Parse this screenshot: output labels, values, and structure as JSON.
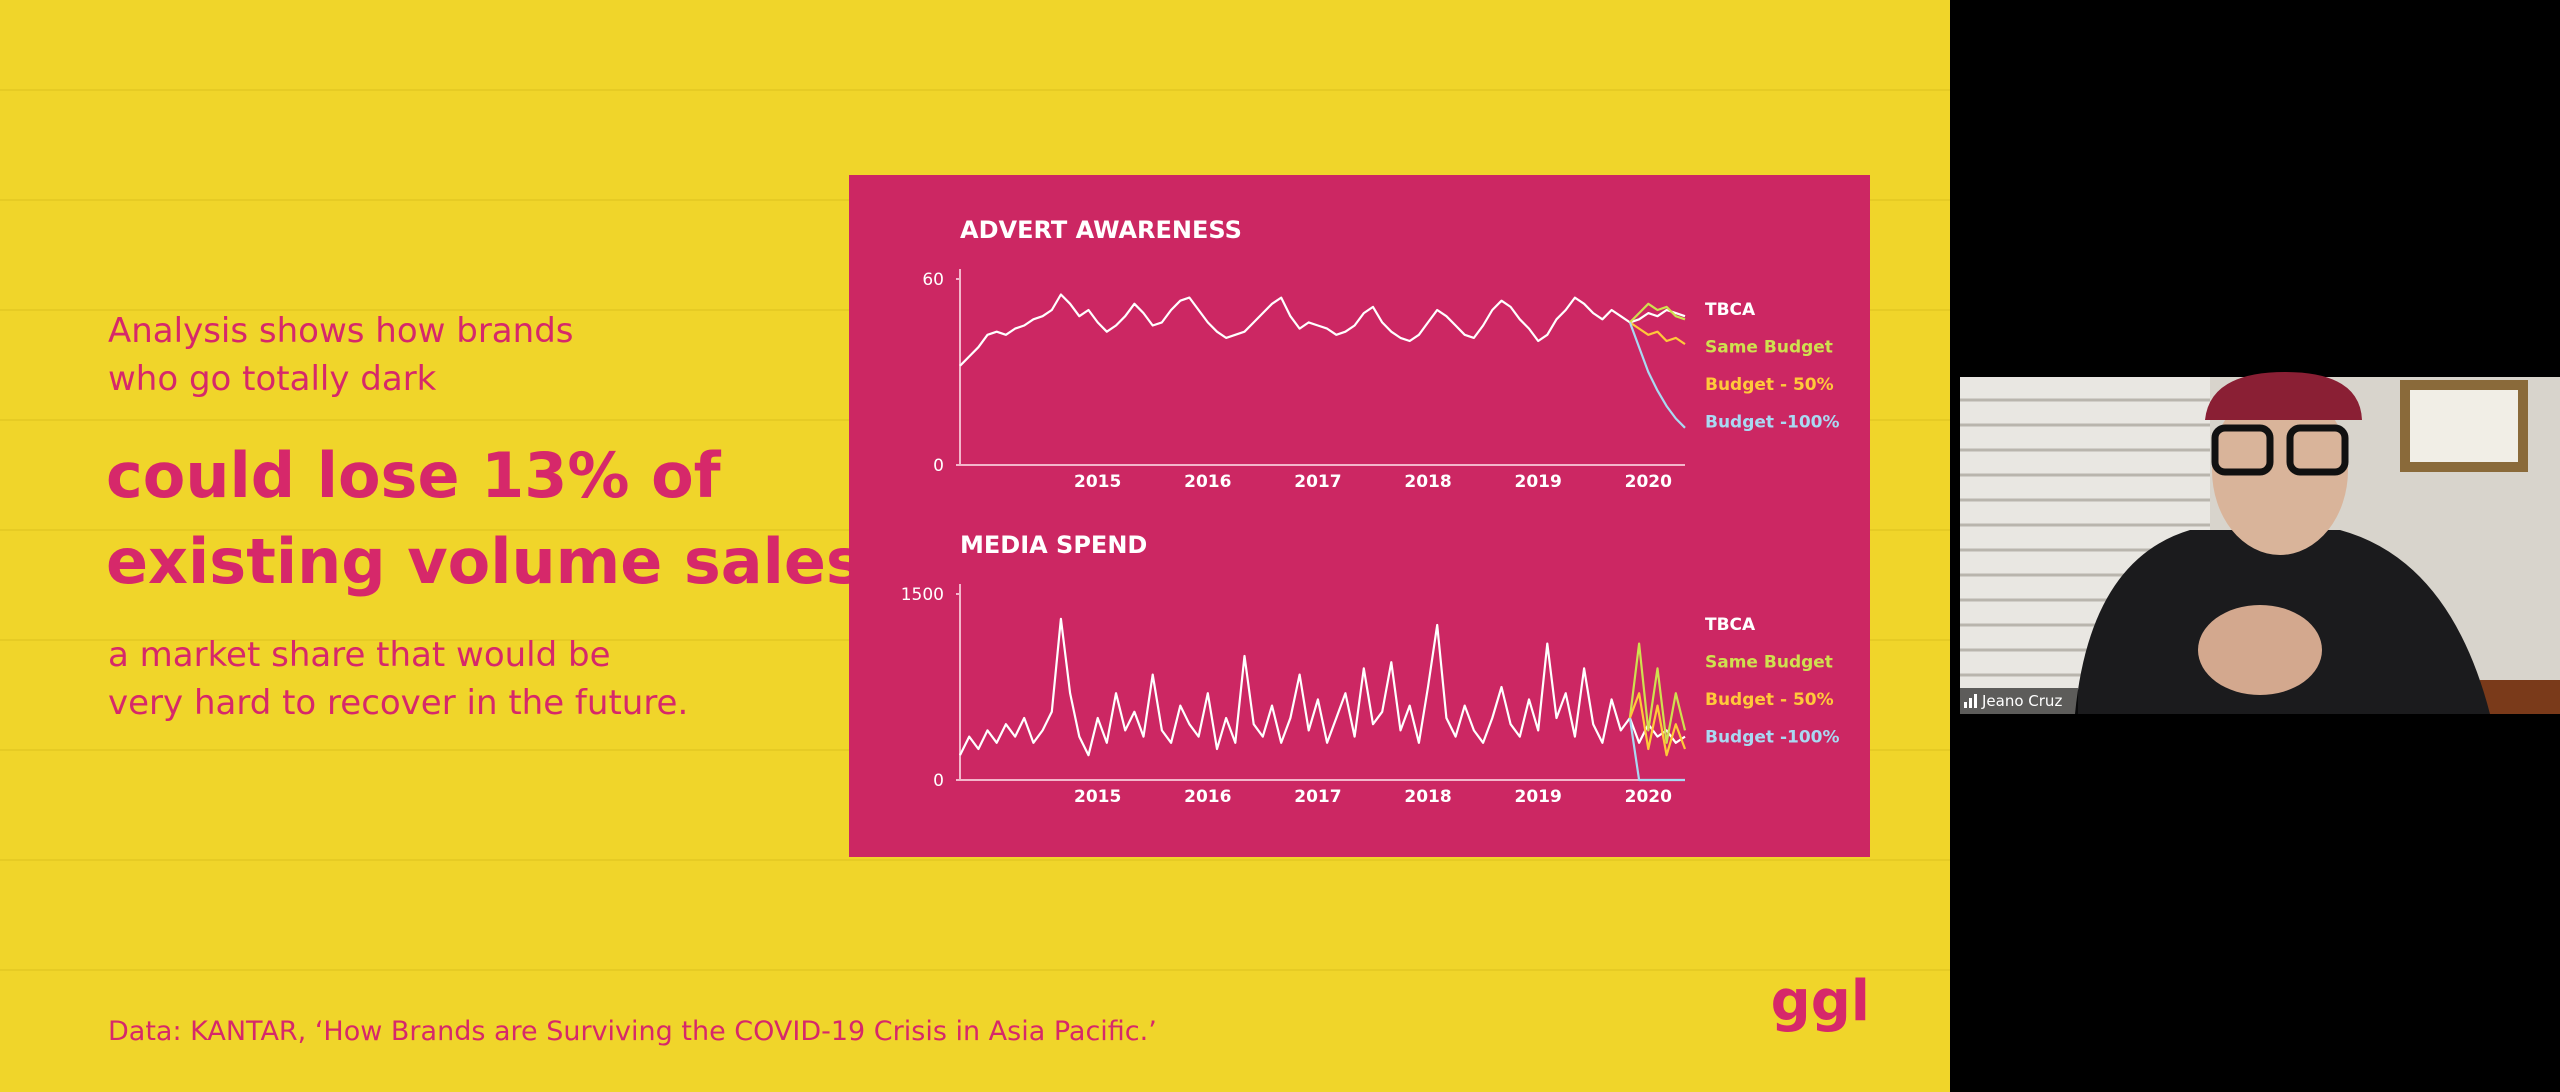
{
  "slide": {
    "intro_lines": [
      "Analysis shows how brands",
      "who go totally dark"
    ],
    "headline_lines": [
      "could lose 13% of",
      "existing volume sales,"
    ],
    "outro_lines": [
      "a market share that would be",
      "very hard to recover in the future."
    ],
    "source": "Data: KANTAR, ‘How Brands are Surviving the COVID-19 Crisis in Asia Pacific.’",
    "logo": "ggl"
  },
  "chart_data": [
    {
      "type": "line",
      "title": "ADVERT AWARENESS",
      "categories": [
        null,
        null,
        null,
        null,
        null,
        null,
        null,
        null,
        null,
        null,
        null,
        null,
        null,
        null,
        null,
        "2015",
        null,
        null,
        null,
        null,
        null,
        null,
        null,
        null,
        null,
        null,
        null,
        "2016",
        null,
        null,
        null,
        null,
        null,
        null,
        null,
        null,
        null,
        null,
        null,
        "2017",
        null,
        null,
        null,
        null,
        null,
        null,
        null,
        null,
        null,
        null,
        null,
        "2018",
        null,
        null,
        null,
        null,
        null,
        null,
        null,
        null,
        null,
        null,
        null,
        "2019",
        null,
        null,
        null,
        null,
        null,
        null,
        null,
        null,
        null,
        null,
        null,
        "2020",
        null,
        null,
        null,
        null
      ],
      "ylim": [
        0,
        60
      ],
      "yticks": [
        0,
        60
      ],
      "series": [
        {
          "name": "TBCA",
          "color": "#ffffff",
          "values": [
            32,
            35,
            38,
            42,
            43,
            42,
            44,
            45,
            47,
            48,
            50,
            55,
            52,
            48,
            50,
            46,
            43,
            45,
            48,
            52,
            49,
            45,
            46,
            50,
            53,
            54,
            50,
            46,
            43,
            41,
            42,
            43,
            46,
            49,
            52,
            54,
            48,
            44,
            46,
            45,
            44,
            42,
            43,
            45,
            49,
            51,
            46,
            43,
            41,
            40,
            42,
            46,
            50,
            48,
            45,
            42,
            41,
            45,
            50,
            53,
            51,
            47,
            44,
            40,
            42,
            47,
            50,
            54,
            52,
            49,
            47,
            50,
            48,
            46,
            47,
            49,
            48,
            50,
            49,
            48
          ]
        },
        {
          "name": "Same Budget",
          "color": "#cfe04f",
          "values": [
            null,
            null,
            null,
            null,
            null,
            null,
            null,
            null,
            null,
            null,
            null,
            null,
            null,
            null,
            null,
            null,
            null,
            null,
            null,
            null,
            null,
            null,
            null,
            null,
            null,
            null,
            null,
            null,
            null,
            null,
            null,
            null,
            null,
            null,
            null,
            null,
            null,
            null,
            null,
            null,
            null,
            null,
            null,
            null,
            null,
            null,
            null,
            null,
            null,
            null,
            null,
            null,
            null,
            null,
            null,
            null,
            null,
            null,
            null,
            null,
            null,
            null,
            null,
            null,
            null,
            null,
            null,
            null,
            null,
            null,
            null,
            null,
            null,
            46,
            49,
            52,
            50,
            51,
            48,
            47
          ]
        },
        {
          "name": "Budget - 50%",
          "color": "#ffc93a",
          "values": [
            null,
            null,
            null,
            null,
            null,
            null,
            null,
            null,
            null,
            null,
            null,
            null,
            null,
            null,
            null,
            null,
            null,
            null,
            null,
            null,
            null,
            null,
            null,
            null,
            null,
            null,
            null,
            null,
            null,
            null,
            null,
            null,
            null,
            null,
            null,
            null,
            null,
            null,
            null,
            null,
            null,
            null,
            null,
            null,
            null,
            null,
            null,
            null,
            null,
            null,
            null,
            null,
            null,
            null,
            null,
            null,
            null,
            null,
            null,
            null,
            null,
            null,
            null,
            null,
            null,
            null,
            null,
            null,
            null,
            null,
            null,
            null,
            null,
            46,
            44,
            42,
            43,
            40,
            41,
            39
          ]
        },
        {
          "name": "Budget -100%",
          "color": "#a9d9f2",
          "values": [
            null,
            null,
            null,
            null,
            null,
            null,
            null,
            null,
            null,
            null,
            null,
            null,
            null,
            null,
            null,
            null,
            null,
            null,
            null,
            null,
            null,
            null,
            null,
            null,
            null,
            null,
            null,
            null,
            null,
            null,
            null,
            null,
            null,
            null,
            null,
            null,
            null,
            null,
            null,
            null,
            null,
            null,
            null,
            null,
            null,
            null,
            null,
            null,
            null,
            null,
            null,
            null,
            null,
            null,
            null,
            null,
            null,
            null,
            null,
            null,
            null,
            null,
            null,
            null,
            null,
            null,
            null,
            null,
            null,
            null,
            null,
            null,
            null,
            46,
            38,
            30,
            24,
            19,
            15,
            12
          ]
        }
      ]
    },
    {
      "type": "line",
      "title": "MEDIA SPEND",
      "categories": [
        null,
        null,
        null,
        null,
        null,
        null,
        null,
        null,
        null,
        null,
        null,
        null,
        null,
        null,
        null,
        "2015",
        null,
        null,
        null,
        null,
        null,
        null,
        null,
        null,
        null,
        null,
        null,
        "2016",
        null,
        null,
        null,
        null,
        null,
        null,
        null,
        null,
        null,
        null,
        null,
        "2017",
        null,
        null,
        null,
        null,
        null,
        null,
        null,
        null,
        null,
        null,
        null,
        "2018",
        null,
        null,
        null,
        null,
        null,
        null,
        null,
        null,
        null,
        null,
        null,
        "2019",
        null,
        null,
        null,
        null,
        null,
        null,
        null,
        null,
        null,
        null,
        null,
        "2020",
        null,
        null,
        null,
        null
      ],
      "ylim": [
        0,
        1500
      ],
      "yticks": [
        0,
        1500
      ],
      "series": [
        {
          "name": "TBCA",
          "color": "#ffffff",
          "values": [
            200,
            350,
            250,
            400,
            300,
            450,
            350,
            500,
            300,
            400,
            550,
            1300,
            700,
            350,
            200,
            500,
            300,
            700,
            400,
            550,
            350,
            850,
            400,
            300,
            600,
            450,
            350,
            700,
            250,
            500,
            300,
            1000,
            450,
            350,
            600,
            300,
            500,
            850,
            400,
            650,
            300,
            500,
            700,
            350,
            900,
            450,
            550,
            950,
            400,
            600,
            300,
            750,
            1250,
            500,
            350,
            600,
            400,
            300,
            500,
            750,
            450,
            350,
            650,
            400,
            1100,
            500,
            700,
            350,
            900,
            450,
            300,
            650,
            400,
            500,
            300,
            450,
            350,
            400,
            300,
            350
          ]
        },
        {
          "name": "Same Budget",
          "color": "#cfe04f",
          "values": [
            null,
            null,
            null,
            null,
            null,
            null,
            null,
            null,
            null,
            null,
            null,
            null,
            null,
            null,
            null,
            null,
            null,
            null,
            null,
            null,
            null,
            null,
            null,
            null,
            null,
            null,
            null,
            null,
            null,
            null,
            null,
            null,
            null,
            null,
            null,
            null,
            null,
            null,
            null,
            null,
            null,
            null,
            null,
            null,
            null,
            null,
            null,
            null,
            null,
            null,
            null,
            null,
            null,
            null,
            null,
            null,
            null,
            null,
            null,
            null,
            null,
            null,
            null,
            null,
            null,
            null,
            null,
            null,
            null,
            null,
            null,
            null,
            null,
            500,
            1100,
            400,
            900,
            300,
            700,
            400
          ]
        },
        {
          "name": "Budget - 50%",
          "color": "#ffc93a",
          "values": [
            null,
            null,
            null,
            null,
            null,
            null,
            null,
            null,
            null,
            null,
            null,
            null,
            null,
            null,
            null,
            null,
            null,
            null,
            null,
            null,
            null,
            null,
            null,
            null,
            null,
            null,
            null,
            null,
            null,
            null,
            null,
            null,
            null,
            null,
            null,
            null,
            null,
            null,
            null,
            null,
            null,
            null,
            null,
            null,
            null,
            null,
            null,
            null,
            null,
            null,
            null,
            null,
            null,
            null,
            null,
            null,
            null,
            null,
            null,
            null,
            null,
            null,
            null,
            null,
            null,
            null,
            null,
            null,
            null,
            null,
            null,
            null,
            null,
            500,
            700,
            250,
            600,
            200,
            450,
            250
          ]
        },
        {
          "name": "Budget -100%",
          "color": "#a9d9f2",
          "values": [
            null,
            null,
            null,
            null,
            null,
            null,
            null,
            null,
            null,
            null,
            null,
            null,
            null,
            null,
            null,
            null,
            null,
            null,
            null,
            null,
            null,
            null,
            null,
            null,
            null,
            null,
            null,
            null,
            null,
            null,
            null,
            null,
            null,
            null,
            null,
            null,
            null,
            null,
            null,
            null,
            null,
            null,
            null,
            null,
            null,
            null,
            null,
            null,
            null,
            null,
            null,
            null,
            null,
            null,
            null,
            null,
            null,
            null,
            null,
            null,
            null,
            null,
            null,
            null,
            null,
            null,
            null,
            null,
            null,
            null,
            null,
            null,
            null,
            500,
            0,
            0,
            0,
            0,
            0,
            0
          ]
        }
      ]
    }
  ],
  "video_tile": {
    "participant_name": "Jeano Cruz"
  }
}
